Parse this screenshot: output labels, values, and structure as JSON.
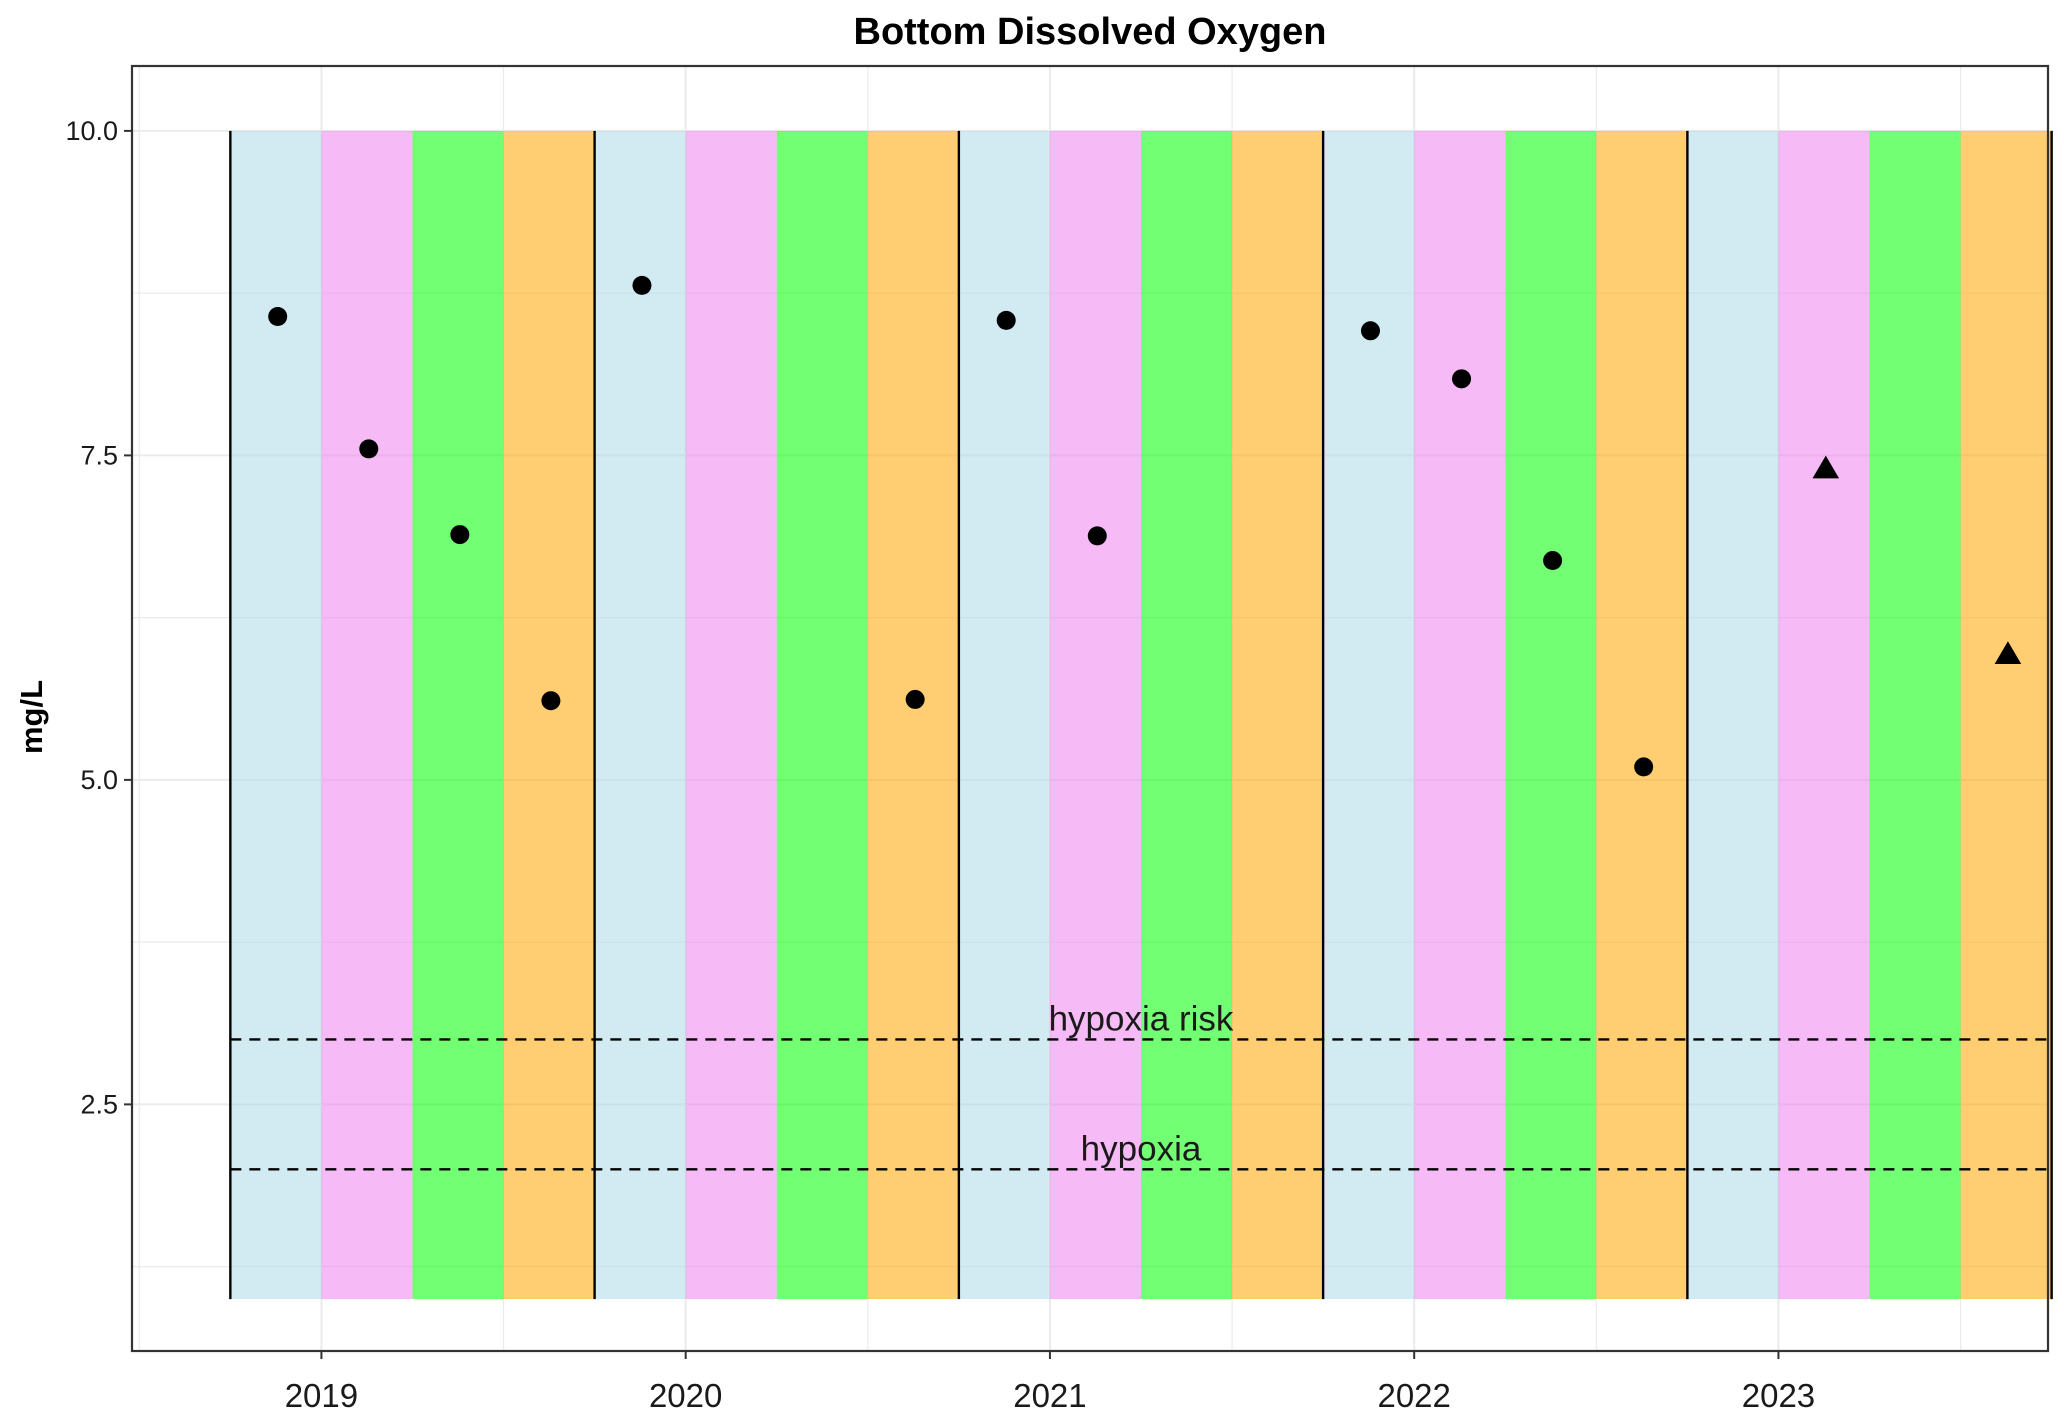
{
  "chart_data": {
    "type": "scatter",
    "title": "Bottom Dissolved Oxygen",
    "xlabel": "",
    "ylabel": "mg/L",
    "xlim": [
      2018.48,
      2023.74
    ],
    "ylim": [
      0.6,
      10.5
    ],
    "y_ticks": [
      2.5,
      5.0,
      7.5,
      10.0
    ],
    "y_tick_labels": [
      "2.5",
      "5.0",
      "7.5",
      "10.0"
    ],
    "x_ticks": [
      2019,
      2020,
      2021,
      2022,
      2023
    ],
    "x_tick_labels": [
      "2019",
      "2020",
      "2021",
      "2022",
      "2023"
    ],
    "season_bands": {
      "y_range": [
        1.0,
        10.0
      ],
      "colors": [
        "#add8e6",
        "#ee82ee",
        "#00ff00",
        "#ffa500"
      ],
      "opacity": 0.55,
      "year_starts": [
        2018.75,
        2019.75,
        2020.75,
        2021.75,
        2022.75,
        2023.75
      ]
    },
    "reference_lines": [
      {
        "y": 3.0,
        "label": "hypoxia risk"
      },
      {
        "y": 2.0,
        "label": "hypoxia"
      }
    ],
    "series": [
      {
        "marker": "circle",
        "points": [
          {
            "x": 2018.88,
            "y": 8.57
          },
          {
            "x": 2019.13,
            "y": 7.55
          },
          {
            "x": 2019.38,
            "y": 6.89
          },
          {
            "x": 2019.63,
            "y": 5.61
          },
          {
            "x": 2019.88,
            "y": 8.81
          },
          {
            "x": 2020.63,
            "y": 5.62
          },
          {
            "x": 2020.88,
            "y": 8.54
          },
          {
            "x": 2021.13,
            "y": 6.88
          },
          {
            "x": 2021.88,
            "y": 8.46
          },
          {
            "x": 2022.13,
            "y": 8.09
          },
          {
            "x": 2022.38,
            "y": 6.69
          },
          {
            "x": 2022.63,
            "y": 5.1
          }
        ]
      },
      {
        "marker": "triangle",
        "points": [
          {
            "x": 2023.13,
            "y": 7.39
          },
          {
            "x": 2023.63,
            "y": 5.96
          }
        ]
      }
    ],
    "colors": {
      "points": "#000000",
      "grid": "#ebebeb",
      "panel_border": "#333333",
      "year_divider": "#000000",
      "reference_line": "#000000"
    },
    "grid": true,
    "legend": "none"
  }
}
